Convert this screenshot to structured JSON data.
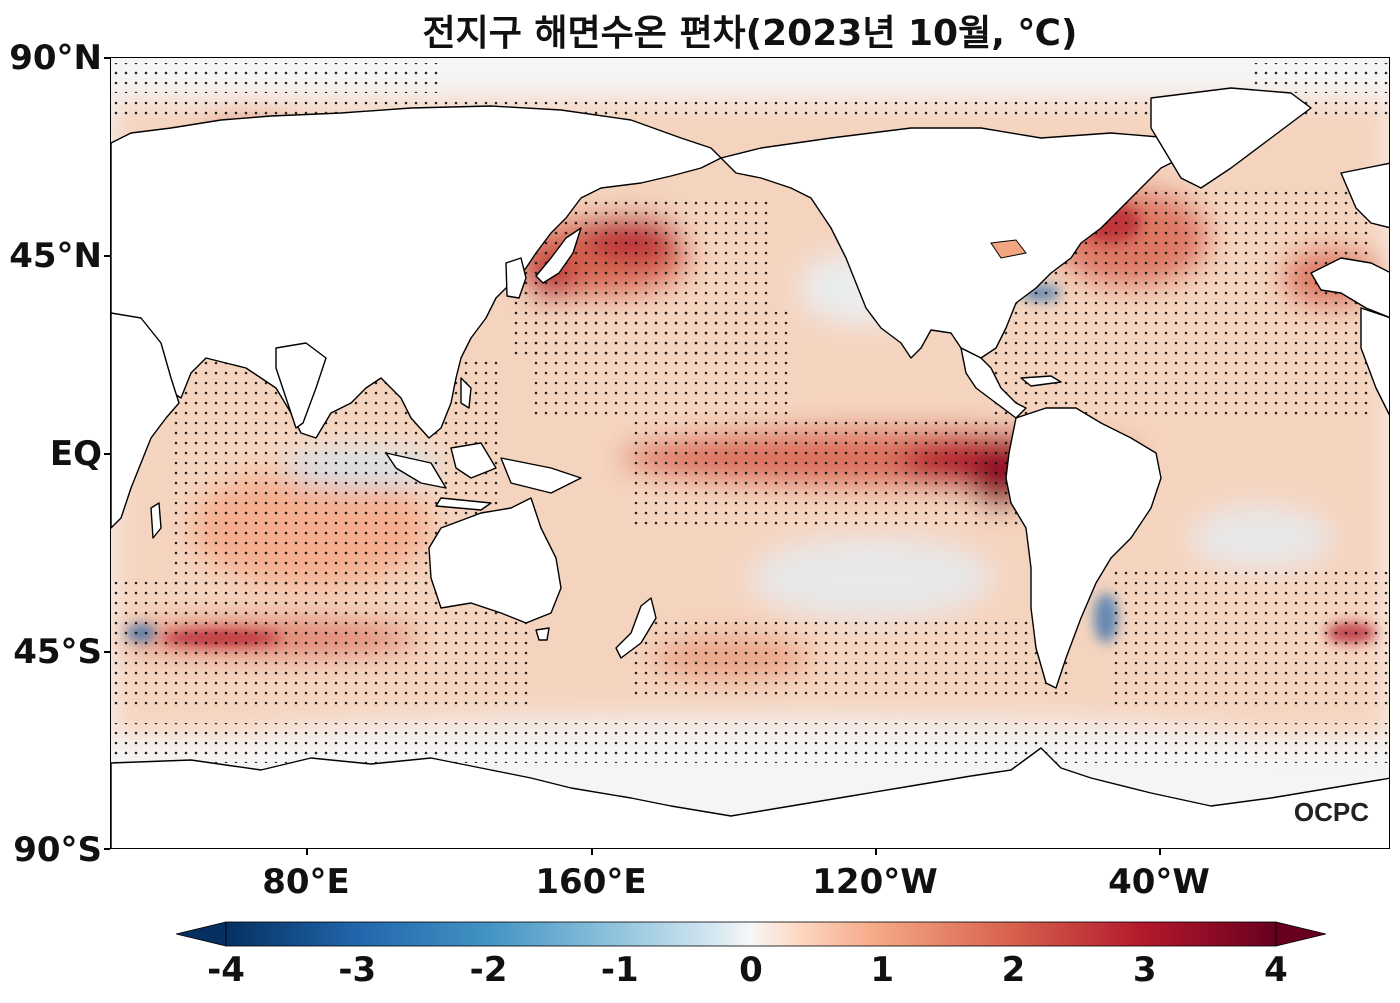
{
  "title": "전지구 해면수온 편차(2023년 10월, ℃)",
  "lat_labels": [
    "90°N",
    "45°N",
    "EQ",
    "45°S",
    "90°S"
  ],
  "lon_labels": [
    "80°E",
    "160°E",
    "120°W",
    "40°W"
  ],
  "colorbar": {
    "tick_labels": [
      "-4",
      "-3",
      "-2",
      "-1",
      "0",
      "1",
      "2",
      "3",
      "4"
    ],
    "min": -4,
    "max": 4,
    "extend": "both",
    "colormap": "RdBu_r",
    "colors": {
      "neg4": "#053061",
      "neg3": "#2166ac",
      "neg2": "#4393c3",
      "neg1": "#92c5de",
      "neg05": "#d1e5f0",
      "zero": "#f7f7f7",
      "pos05": "#fddbc7",
      "pos1": "#f4a582",
      "pos2": "#d6604d",
      "pos3": "#b2182b",
      "pos4": "#67001f"
    }
  },
  "watermark": "OCPC",
  "map": {
    "projection": "equirectangular",
    "central_longitude": 180,
    "stippling": "significance dots",
    "land_color": "#ffffff"
  }
}
